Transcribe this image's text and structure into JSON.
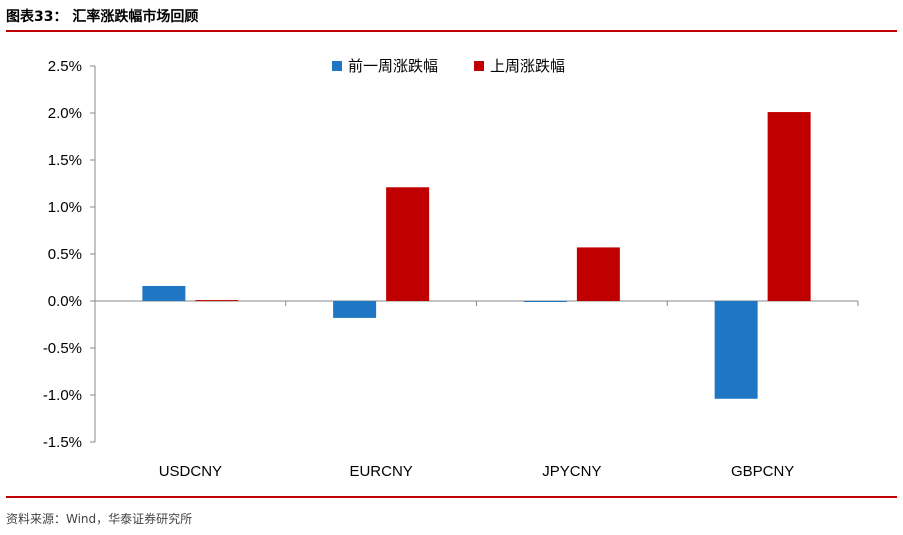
{
  "header": {
    "title": "图表33：  汇率涨跌幅市场回顾"
  },
  "footer": {
    "source": "资料来源：Wind，华泰证券研究所"
  },
  "chart_data": {
    "type": "bar",
    "categories": [
      "USDCNY",
      "EURCNY",
      "JPYCNY",
      "GBPCNY"
    ],
    "series": [
      {
        "name": "前一周涨跌幅",
        "color": "#1f77c4",
        "values": [
          0.16,
          -0.18,
          -0.01,
          -1.04
        ]
      },
      {
        "name": "上周涨跌幅",
        "color": "#c00000",
        "values": [
          0.01,
          1.21,
          0.57,
          2.01
        ]
      }
    ],
    "ylim": [
      -1.5,
      2.5
    ],
    "yticks": [
      2.5,
      2.0,
      1.5,
      1.0,
      0.5,
      0.0,
      -0.5,
      -1.0,
      -1.5
    ],
    "ytick_labels": [
      "2.5%",
      "2.0%",
      "1.5%",
      "1.0%",
      "0.5%",
      "0.0%",
      "-0.5%",
      "-1.0%",
      "-1.5%"
    ],
    "grid": false,
    "legend": "top-center",
    "xlabel": "",
    "ylabel": ""
  }
}
